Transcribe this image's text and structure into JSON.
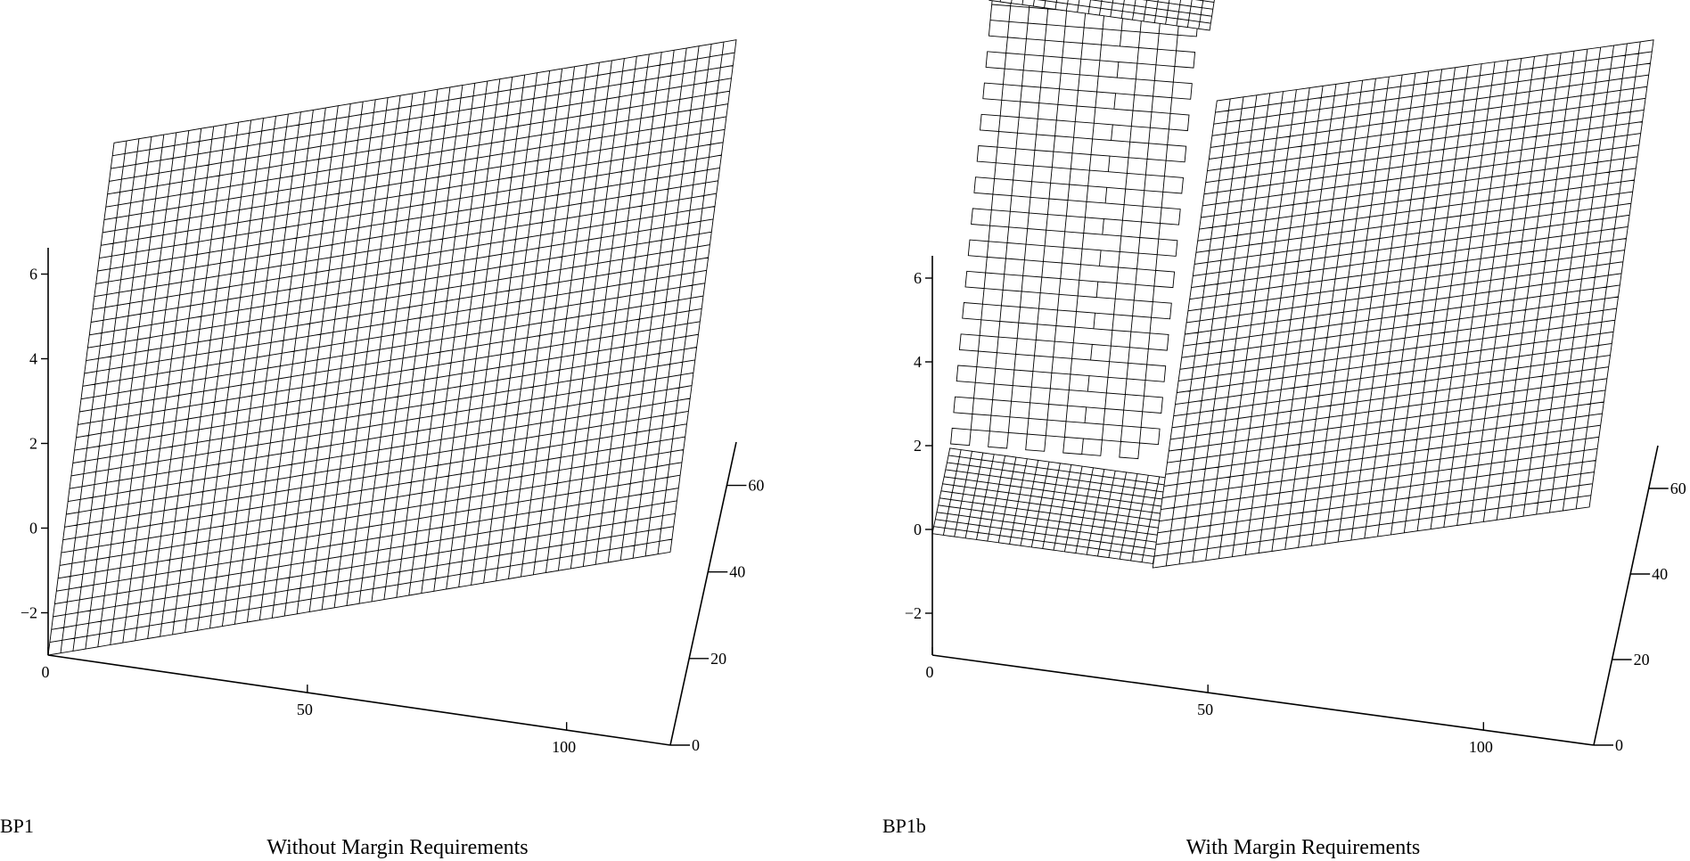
{
  "chart_data": [
    {
      "type": "surface3d",
      "panel_label": "BP1",
      "caption": "Without Margin Requirements",
      "x_ticks": [
        "0",
        "50",
        "100"
      ],
      "y_ticks": [
        "0",
        "20",
        "40",
        "60"
      ],
      "z_ticks": [
        "-2",
        "0",
        "2",
        "4",
        "6"
      ],
      "x_range": [
        0,
        120
      ],
      "y_range": [
        0,
        70
      ],
      "z_range": [
        -3,
        6.5
      ],
      "surface": "approximately planar, rising from about -3 at the origin corner to about 6.5 at the far corner"
    },
    {
      "type": "surface3d",
      "panel_label": "BP1b",
      "caption": "With Margin Requirements",
      "x_ticks": [
        "0",
        "50",
        "100"
      ],
      "y_ticks": [
        "0",
        "20",
        "40",
        "60"
      ],
      "z_ticks": [
        "-2",
        "0",
        "2",
        "4",
        "6"
      ],
      "x_range": [
        0,
        120
      ],
      "y_range": [
        0,
        70
      ],
      "z_range": [
        -3,
        6.5
      ],
      "surface": "flat segment near 0 for low x, a sparse steep sheet rising to about 6.5, and a planar segment rising toward about 6.5 at high x"
    }
  ]
}
